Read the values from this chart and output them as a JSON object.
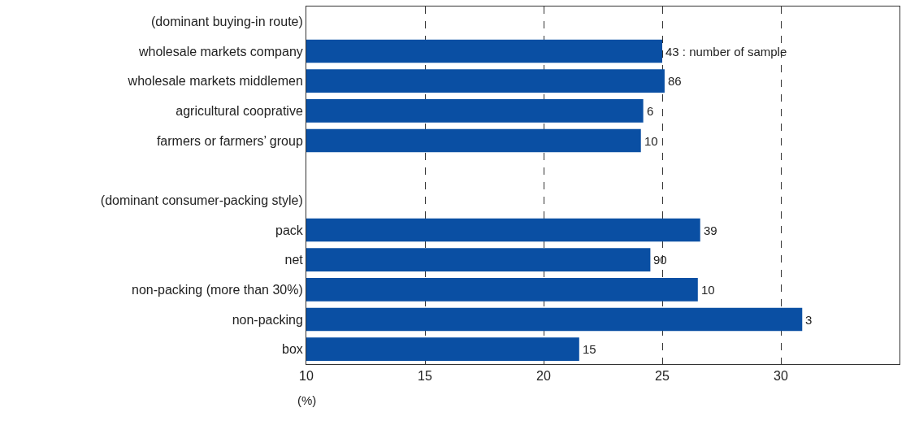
{
  "chart_data": {
    "type": "bar",
    "orientation": "horizontal",
    "categories": [
      "(dominant buying-in route)",
      "wholesale markets company",
      "wholesale markets middlemen",
      "agricultural cooprative",
      "farmers or farmers’ group",
      null,
      "(dominant consumer-packing style)",
      "pack",
      "net",
      "non-packing (more than 30%)",
      "non-packing",
      "box"
    ],
    "values": [
      null,
      25.0,
      25.1,
      24.2,
      24.1,
      null,
      null,
      26.6,
      24.5,
      26.5,
      30.9,
      21.5
    ],
    "annotations": [
      {
        "text": "43 : number of sample",
        "x": 25.0,
        "y": "wholesale markets company"
      },
      {
        "text": "86",
        "x": 25.1,
        "y": "wholesale markets middlemen"
      },
      {
        "text": "6",
        "x": 24.2,
        "y": "agricultural cooprative"
      },
      {
        "text": "10",
        "x": 24.1,
        "y": "farmers or farmers’ group"
      },
      {
        "text": "39",
        "x": 26.6,
        "y": "pack"
      },
      {
        "text": "90",
        "x": 24.5,
        "y": "net"
      },
      {
        "text": "10",
        "x": 26.5,
        "y": "non-packing (more than 30%)"
      },
      {
        "text": "3",
        "x": 30.9,
        "y": "non-packing"
      },
      {
        "text": "15",
        "x": 21.5,
        "y": "box"
      }
    ],
    "color": "#0a4fa3",
    "xlabel": "(%)",
    "xlim": [
      10,
      35
    ],
    "xticks": [
      10,
      15,
      20,
      25,
      30
    ],
    "grid": "x"
  }
}
